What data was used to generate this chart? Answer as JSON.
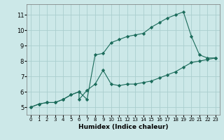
{
  "xlabel": "Humidex (Indice chaleur)",
  "bg_color": "#cce8e8",
  "grid_color": "#aacece",
  "line_color": "#1a6b5a",
  "xlim": [
    -0.5,
    23.5
  ],
  "ylim": [
    4.5,
    11.7
  ],
  "xticks": [
    0,
    1,
    2,
    3,
    4,
    5,
    6,
    7,
    8,
    9,
    10,
    11,
    12,
    13,
    14,
    15,
    16,
    17,
    18,
    19,
    20,
    21,
    22,
    23
  ],
  "yticks": [
    5,
    6,
    7,
    8,
    9,
    10,
    11
  ],
  "line1_x": [
    0,
    1,
    2,
    3,
    4,
    5,
    6,
    6,
    7,
    8,
    9,
    10,
    11,
    12,
    13,
    14,
    15,
    16,
    17,
    18,
    19,
    20,
    21,
    22,
    23
  ],
  "line1_y": [
    5.0,
    5.2,
    5.3,
    5.3,
    5.5,
    5.8,
    6.0,
    5.5,
    6.1,
    6.5,
    7.4,
    6.5,
    6.4,
    6.5,
    6.5,
    6.6,
    6.7,
    6.9,
    7.1,
    7.3,
    7.6,
    7.9,
    8.0,
    8.1,
    8.2
  ],
  "line2_x": [
    0,
    1,
    2,
    3,
    4,
    5,
    6,
    7,
    8,
    9,
    10,
    11,
    12,
    13,
    14,
    15,
    16,
    17,
    18,
    19,
    20,
    21,
    22,
    23
  ],
  "line2_y": [
    5.0,
    5.2,
    5.3,
    5.3,
    5.5,
    5.8,
    6.0,
    5.5,
    8.4,
    8.5,
    9.2,
    9.4,
    9.6,
    9.7,
    9.8,
    10.2,
    10.5,
    10.8,
    11.0,
    11.2,
    9.6,
    8.4,
    8.2,
    8.2
  ]
}
